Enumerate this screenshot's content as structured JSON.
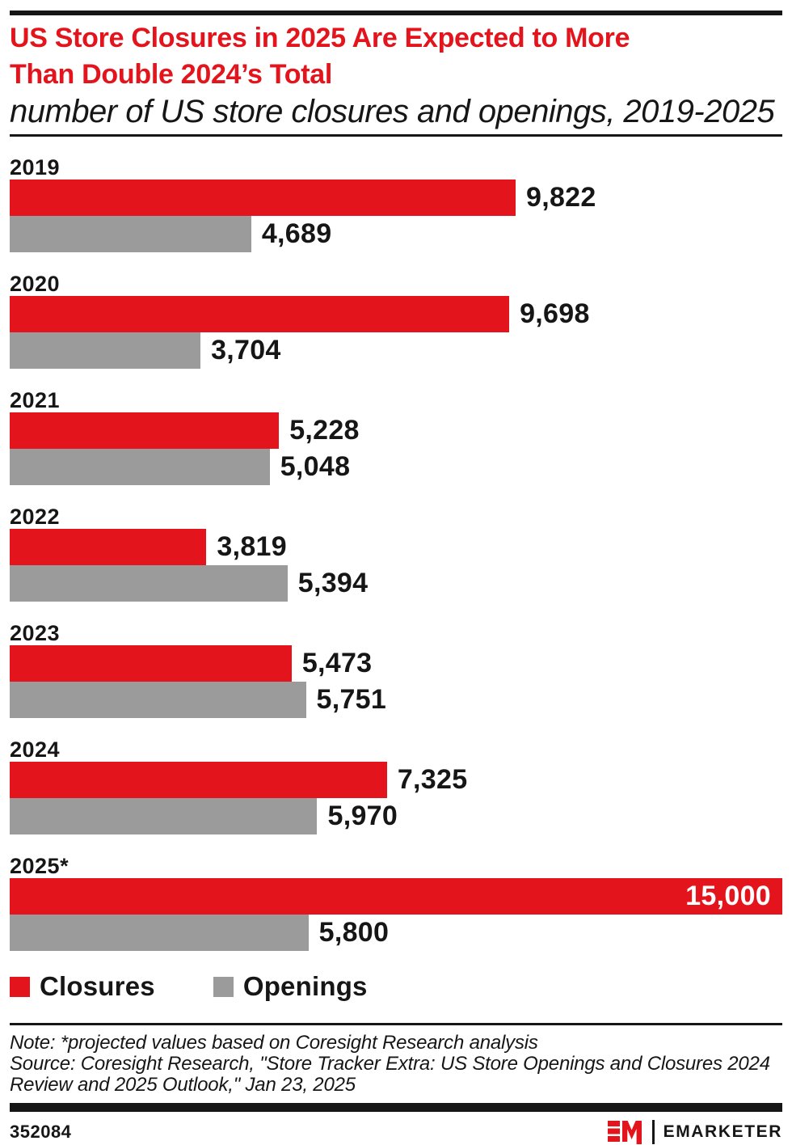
{
  "header": {
    "title_lines": [
      "US Store Closures in 2025 Are Expected to More",
      "Than Double 2024’s Total"
    ],
    "title_color": "#E3141C",
    "subtitle": "number of US store closures and openings, 2019-2025"
  },
  "chart_data": {
    "type": "bar",
    "orientation": "horizontal",
    "title": "US Store Closures in 2025 Are Expected to More Than Double 2024’s Total",
    "subtitle": "number of US store closures and openings, 2019-2025",
    "categories": [
      "2019",
      "2020",
      "2021",
      "2022",
      "2023",
      "2024",
      "2025*"
    ],
    "series": [
      {
        "name": "Closures",
        "color": "#E3141C",
        "values": [
          9822,
          9698,
          5228,
          3819,
          5473,
          7325,
          15000
        ],
        "labels": [
          "9,822",
          "9,698",
          "5,228",
          "3,819",
          "5,473",
          "7,325",
          "15,000"
        ]
      },
      {
        "name": "Openings",
        "color": "#9B9B9B",
        "values": [
          4689,
          3704,
          5048,
          5394,
          5751,
          5970,
          5800
        ],
        "labels": [
          "4,689",
          "3,704",
          "5,048",
          "5,394",
          "5,751",
          "5,970",
          "5,800"
        ]
      }
    ],
    "xlim": [
      0,
      15000
    ],
    "value_labels": true,
    "gridlines": false,
    "legend_position": "bottom"
  },
  "footer": {
    "note": "Note: *projected values based on Coresight Research analysis",
    "source": "Source: Coresight Research, \"Store Tracker Extra: US Store Openings and Closures 2024 Review and 2025 Outlook,\" Jan 23, 2025",
    "chart_id": "352084",
    "brand_name": "EMARKETER"
  }
}
